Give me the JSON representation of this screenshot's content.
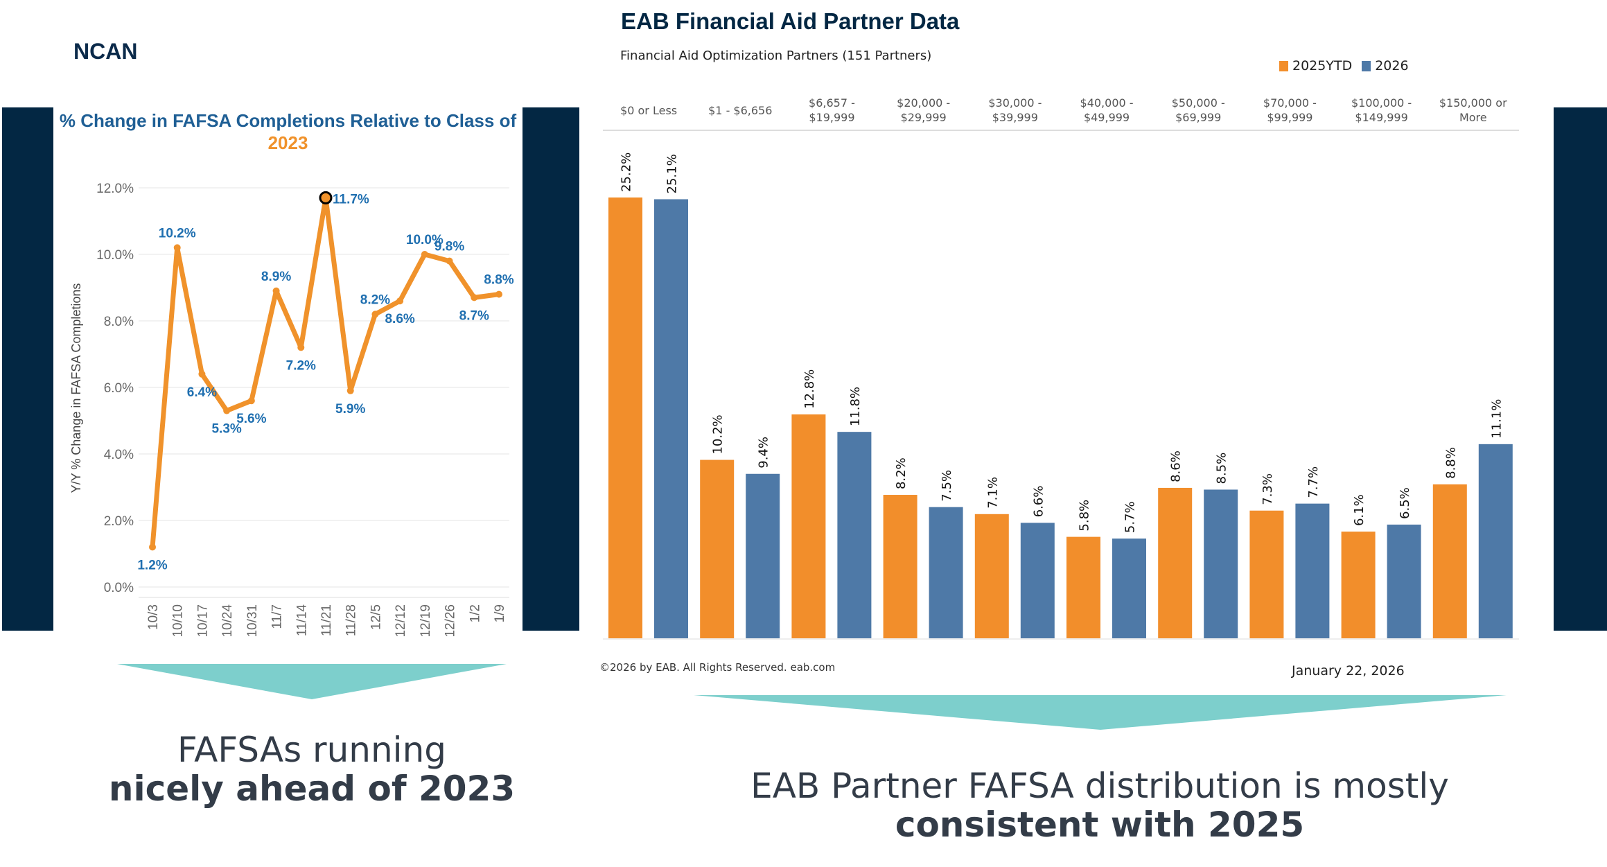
{
  "header": {
    "org": "NCAN"
  },
  "left_caption": {
    "line1": "FAFSAs running",
    "line2": "nicely ahead of 2023"
  },
  "right_caption": {
    "line1": "EAB Partner FAFSA distribution is mostly",
    "line2": "consistent with 2025"
  },
  "colors": {
    "dark_panel": "#032743",
    "teal_arrow": "#7dcfcc",
    "line": "#f0922b",
    "line_label": "#1f6fb0",
    "bar_2025": "#f28e2b",
    "bar_2026": "#4e79a7"
  },
  "chart_data": [
    {
      "type": "line",
      "title": "% Change in FAFSA Completions Relative to Class of",
      "title_highlight": "2023",
      "ylabel": "Y/Y % Change in FAFSA Completions",
      "xlabel": "",
      "ylim": [
        0,
        12
      ],
      "yticks": [
        "0.0%",
        "2.0%",
        "4.0%",
        "6.0%",
        "8.0%",
        "10.0%",
        "12.0%"
      ],
      "grid": true,
      "categories": [
        "10/3",
        "10/10",
        "10/17",
        "10/24",
        "10/31",
        "11/7",
        "11/14",
        "11/21",
        "11/28",
        "12/5",
        "12/12",
        "12/19",
        "12/26",
        "1/2",
        "1/9"
      ],
      "values": [
        1.2,
        10.2,
        6.4,
        5.3,
        5.6,
        8.9,
        7.2,
        11.7,
        5.9,
        8.2,
        8.6,
        10.0,
        9.8,
        8.7,
        8.8
      ],
      "labels": [
        "1.2%",
        "10.2%",
        "6.4%",
        "5.3%",
        "5.6%",
        "8.9%",
        "7.2%",
        "11.7%",
        "5.9%",
        "8.2%",
        "8.6%",
        "10.0%",
        "9.8%",
        "8.7%",
        "8.8%"
      ],
      "highlighted_point": "11/21"
    },
    {
      "type": "bar",
      "title": "EAB Financial Aid Partner Data",
      "subtitle": "Financial Aid Optimization Partners (151 Partners)",
      "legend_position": "top-right",
      "categories": [
        "$0 or Less",
        "$1 - $6,656",
        "$6,657 - $19,999",
        "$20,000 - $29,999",
        "$30,000 - $39,999",
        "$40,000 - $49,999",
        "$50,000 - $69,999",
        "$70,000 - $99,999",
        "$100,000 - $149,999",
        "$150,000 or More"
      ],
      "series": [
        {
          "name": "2025YTD",
          "values": [
            25.2,
            10.2,
            12.8,
            8.2,
            7.1,
            5.8,
            8.6,
            7.3,
            6.1,
            8.8
          ],
          "labels": [
            "25.2%",
            "10.2%",
            "12.8%",
            "8.2%",
            "7.1%",
            "5.8%",
            "8.6%",
            "7.3%",
            "6.1%",
            "8.8%"
          ]
        },
        {
          "name": "2026",
          "values": [
            25.1,
            9.4,
            11.8,
            7.5,
            6.6,
            5.7,
            8.5,
            7.7,
            6.5,
            11.1
          ],
          "labels": [
            "25.1%",
            "9.4%",
            "11.8%",
            "7.5%",
            "6.6%",
            "5.7%",
            "8.5%",
            "7.7%",
            "6.5%",
            "11.1%"
          ]
        }
      ],
      "footer": "©2026 by EAB. All Rights Reserved. eab.com",
      "date": "January 22, 2026"
    }
  ]
}
